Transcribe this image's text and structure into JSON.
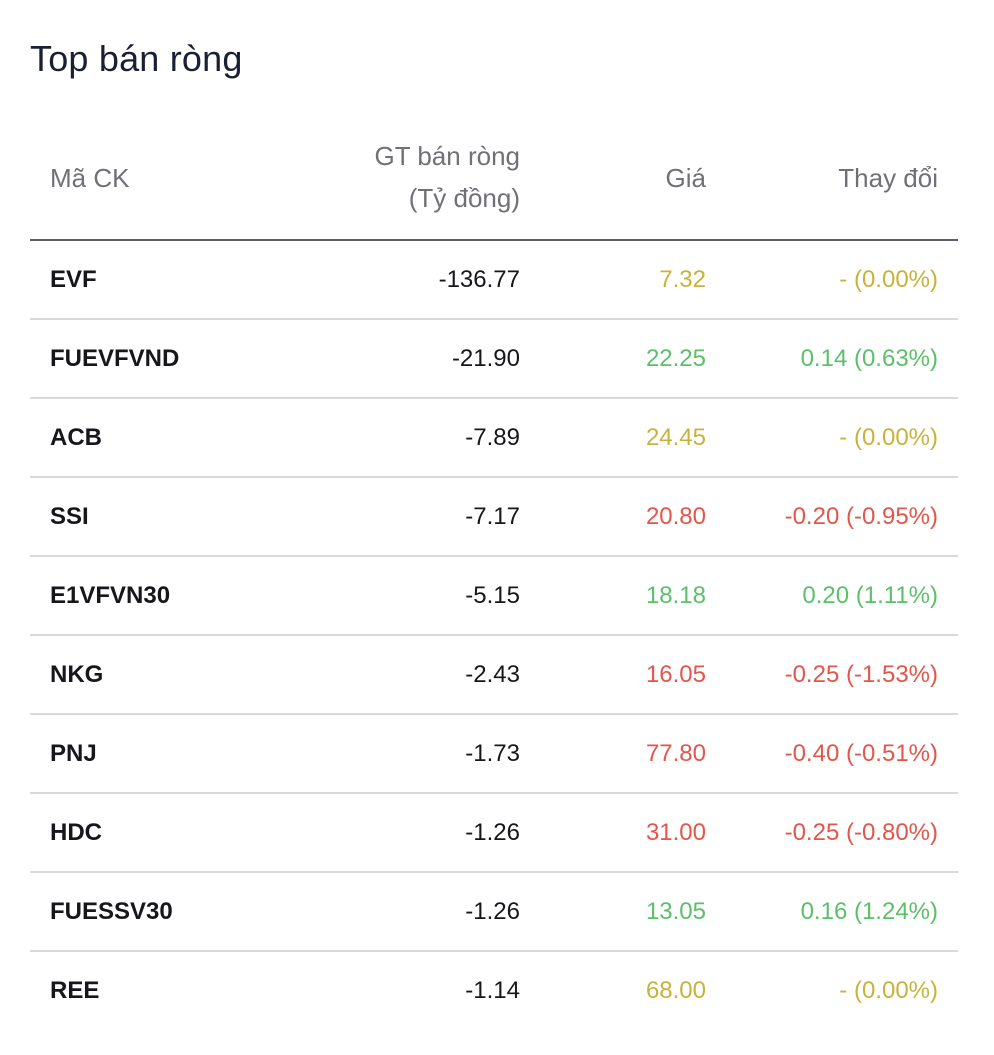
{
  "title": "Top bán ròng",
  "columns": {
    "code": "Mã CK",
    "value_line1": "GT bán ròng",
    "value_line2": "(Tỷ đồng)",
    "price": "Giá",
    "change": "Thay đổi"
  },
  "colors": {
    "ref": "#c9b23c",
    "up": "#5cbf6a",
    "down": "#e2564b",
    "text": "#16161b",
    "header": "#707077"
  },
  "rows": [
    {
      "code": "EVF",
      "value": "-136.77",
      "price": "7.32",
      "change": "- (0.00%)",
      "status": "ref"
    },
    {
      "code": "FUEVFVND",
      "value": "-21.90",
      "price": "22.25",
      "change": "0.14 (0.63%)",
      "status": "up"
    },
    {
      "code": "ACB",
      "value": "-7.89",
      "price": "24.45",
      "change": "- (0.00%)",
      "status": "ref"
    },
    {
      "code": "SSI",
      "value": "-7.17",
      "price": "20.80",
      "change": "-0.20 (-0.95%)",
      "status": "down"
    },
    {
      "code": "E1VFVN30",
      "value": "-5.15",
      "price": "18.18",
      "change": "0.20 (1.11%)",
      "status": "up"
    },
    {
      "code": "NKG",
      "value": "-2.43",
      "price": "16.05",
      "change": "-0.25 (-1.53%)",
      "status": "down"
    },
    {
      "code": "PNJ",
      "value": "-1.73",
      "price": "77.80",
      "change": "-0.40 (-0.51%)",
      "status": "down"
    },
    {
      "code": "HDC",
      "value": "-1.26",
      "price": "31.00",
      "change": "-0.25 (-0.80%)",
      "status": "down"
    },
    {
      "code": "FUESSV30",
      "value": "-1.26",
      "price": "13.05",
      "change": "0.16 (1.24%)",
      "status": "up"
    },
    {
      "code": "REE",
      "value": "-1.14",
      "price": "68.00",
      "change": "- (0.00%)",
      "status": "ref"
    }
  ]
}
